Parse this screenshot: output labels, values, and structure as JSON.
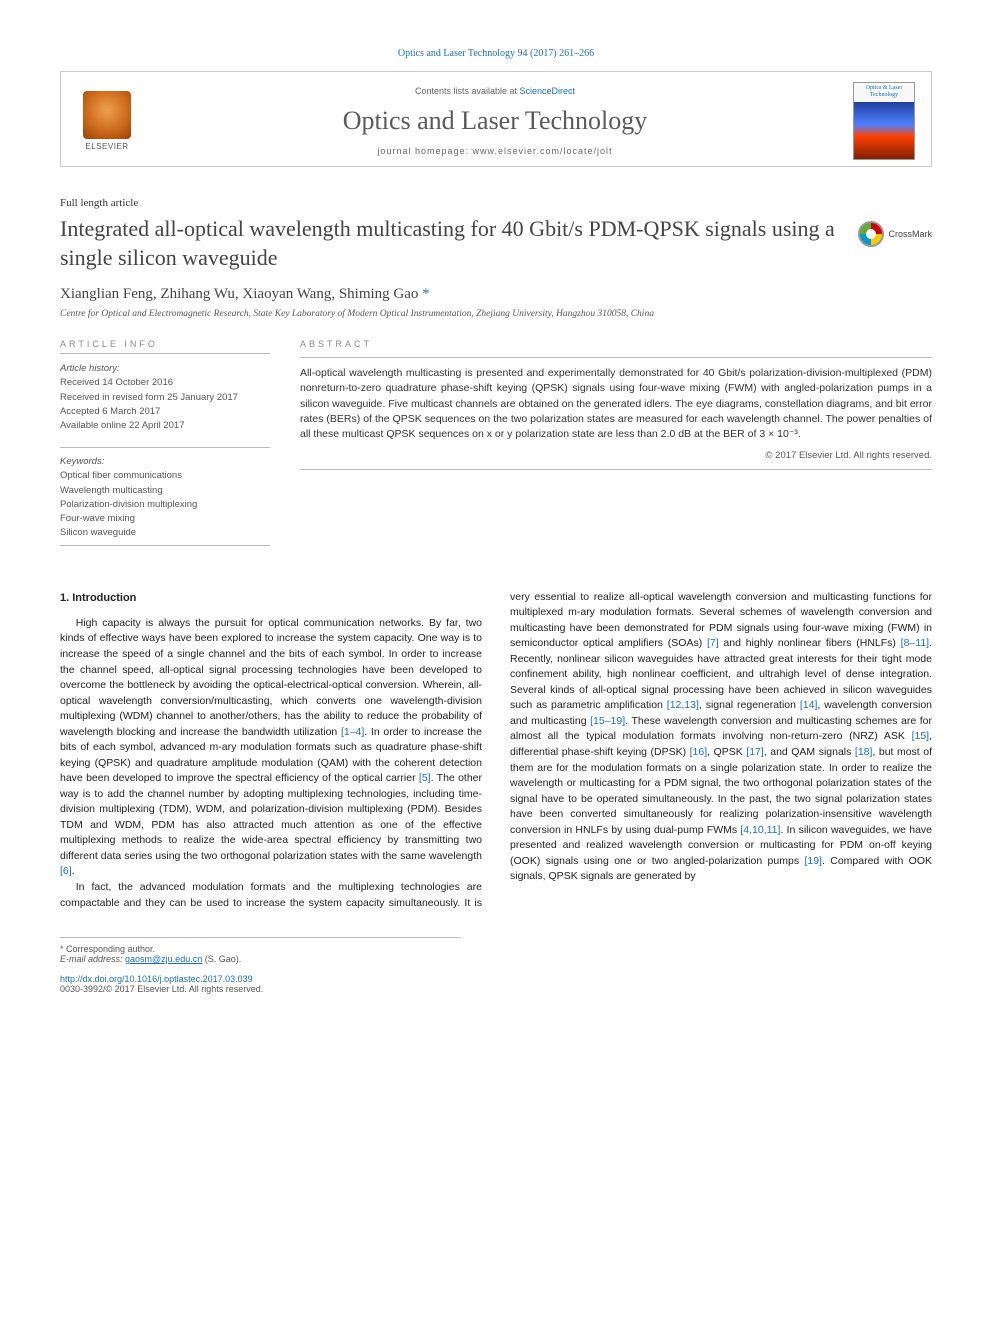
{
  "citation": "Optics and Laser Technology 94 (2017) 261–266",
  "header": {
    "contents_prefix": "Contents lists available at ",
    "contents_link": "ScienceDirect",
    "journal_name": "Optics and Laser Technology",
    "homepage_prefix": "journal homepage: ",
    "homepage_url": "www.elsevier.com/locate/jolt",
    "publisher_label": "ELSEVIER",
    "cover_label": "Optics & Laser Technology"
  },
  "article": {
    "type": "Full length article",
    "title": "Integrated all-optical wavelength multicasting for 40 Gbit/s PDM-QPSK signals using a single silicon waveguide",
    "crossmark_label": "CrossMark",
    "authors": "Xianglian Feng, Zhihang Wu, Xiaoyan Wang, Shiming Gao",
    "corr_marker": " *",
    "affiliation": "Centre for Optical and Electromagnetic Research, State Key Laboratory of Modern Optical Instrumentation, Zhejiang University, Hangzhou 310058, China"
  },
  "info": {
    "heading": "article info",
    "history_label": "Article history:",
    "history": [
      "Received 14 October 2016",
      "Received in revised form 25 January 2017",
      "Accepted 6 March 2017",
      "Available online 22 April 2017"
    ],
    "keywords_label": "Keywords:",
    "keywords": [
      "Optical fiber communications",
      "Wavelength multicasting",
      "Polarization-division multiplexing",
      "Four-wave mixing",
      "Silicon waveguide"
    ]
  },
  "abstract": {
    "heading": "abstract",
    "text": "All-optical wavelength multicasting is presented and experimentally demonstrated for 40 Gbit/s polarization-division-multiplexed (PDM) nonreturn-to-zero quadrature phase-shift keying (QPSK) signals using four-wave mixing (FWM) with angled-polarization pumps in a silicon waveguide. Five multicast channels are obtained on the generated idlers. The eye diagrams, constellation diagrams, and bit error rates (BERs) of the QPSK sequences on the two polarization states are measured for each wavelength channel. The power penalties of all these multicast QPSK sequences on x or y polarization state are less than 2.0 dB at the BER of 3 × 10⁻³.",
    "copyright": "© 2017 Elsevier Ltd. All rights reserved."
  },
  "body": {
    "section_heading": "1. Introduction",
    "p1_a": "High capacity is always the pursuit for optical communication networks. By far, two kinds of effective ways have been explored to increase the system capacity. One way is to increase the speed of a single channel and the bits of each symbol. In order to increase the channel speed, all-optical signal processing technologies have been developed to overcome the bottleneck by avoiding the optical-electrical-optical conversion. Wherein, all-optical wavelength conversion/multicasting, which converts one wavelength-division multiplexing (WDM) channel to another/others, has the ability to reduce the probability of wavelength blocking and increase the bandwidth utilization ",
    "ref1": "[1–4]",
    "p1_b": ". In order to increase the bits of each symbol, advanced m-ary modulation formats such as quadrature phase-shift keying (QPSK) and quadrature amplitude modulation (QAM) with the coherent detection have been developed to improve the spectral efficiency of the optical carrier ",
    "ref5": "[5]",
    "p1_c": ". The other way is to add the channel number by adopting multiplexing technologies, including time-division multiplexing (TDM), WDM, and polarization-division multiplexing (PDM). Besides TDM and WDM, PDM has also attracted much attention as one of the effective multiplexing methods to realize the wide-area spectral efficiency by transmitting two different data series using the two orthogonal polarization states with the same wavelength ",
    "ref6": "[6]",
    "p1_d": ".",
    "p2_a": "In fact, the advanced modulation formats and the multiplexing technologies are compactable and they can be used to increase the system capacity simultaneously. It is very essential to realize all-optical wavelength conversion and multicasting functions for multiplexed m-ary modulation formats. Several schemes of wavelength conversion and multicasting have been demonstrated for PDM signals using four-wave mixing (FWM) in semiconductor optical amplifiers (SOAs) ",
    "ref7": "[7]",
    "p2_b": " and highly nonlinear fibers (HNLFs) ",
    "ref8_11": "[8–11]",
    "p2_c": ". Recently, nonlinear silicon waveguides have attracted great interests for their tight mode confinement ability, high nonlinear coefficient, and ultrahigh level of dense integration. Several kinds of all-optical signal processing have been achieved in silicon waveguides such as parametric amplification ",
    "ref12_13": "[12,13]",
    "p2_d": ", signal regeneration ",
    "ref14": "[14]",
    "p2_e": ", wavelength conversion and multicasting ",
    "ref15_19": "[15–19]",
    "p2_f": ". These wavelength conversion and multicasting schemes are for almost all the typical modulation formats involving non-return-zero (NRZ) ASK ",
    "ref15": "[15]",
    "p2_g": ", differential phase-shift keying (DPSK) ",
    "ref16": "[16]",
    "p2_h": ", QPSK ",
    "ref17": "[17]",
    "p2_i": ", and QAM signals ",
    "ref18": "[18]",
    "p2_j": ", but most of them are for the modulation formats on a single polarization state. In order to realize the wavelength or multicasting for a PDM signal, the two orthogonal polarization states of the signal have to be operated simultaneously. In the past, the two signal polarization states have been converted simultaneously for realizing polarization-insensitive wavelength conversion in HNLFs by using dual-pump FWMs ",
    "ref4_10_11": "[4,10,11]",
    "p2_k": ". In silicon waveguides, we have presented and realized wavelength conversion or multicasting for PDM on-off keying (OOK) signals using one or two angled-polarization pumps ",
    "ref19": "[19]",
    "p2_l": ". Compared with OOK signals, QPSK signals are generated by"
  },
  "footer": {
    "corr_label": "* Corresponding author.",
    "email_label": "E-mail address: ",
    "email": "gaosm@zju.edu.cn",
    "email_suffix": " (S. Gao).",
    "doi": "http://dx.doi.org/10.1016/j.optlastec.2017.03.039",
    "issn_line": "0030-3992/© 2017 Elsevier Ltd. All rights reserved."
  },
  "colors": {
    "link": "#1a6fb8",
    "text": "#333333",
    "muted": "#555555",
    "border": "#bbbbbb"
  }
}
